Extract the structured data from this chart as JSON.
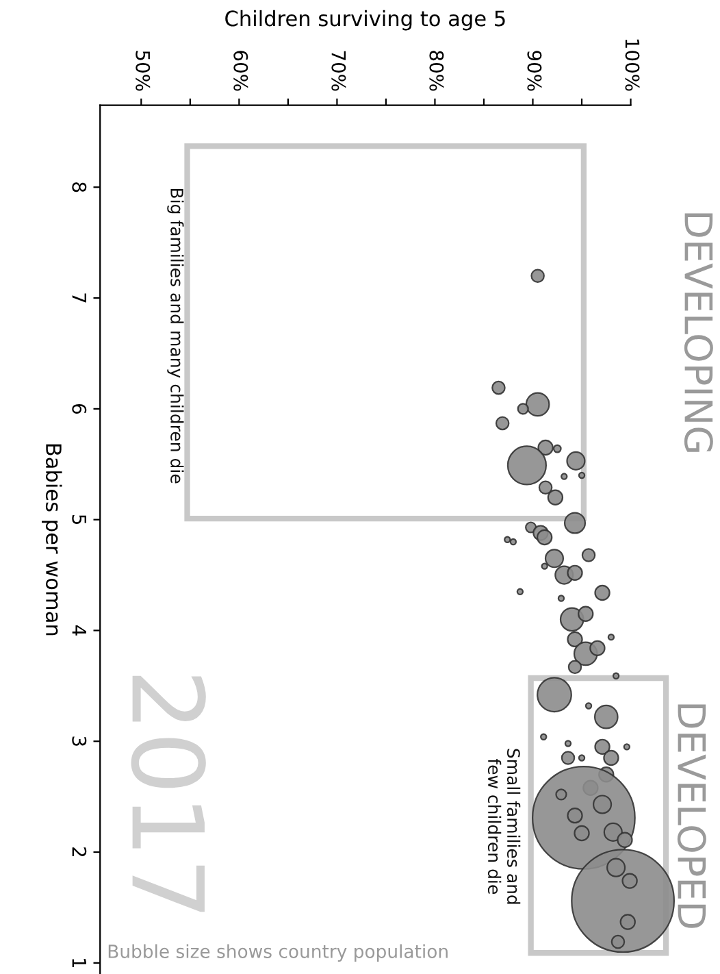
{
  "chart_data": {
    "type": "bubble",
    "xlabel": "Children surviving to age 5",
    "ylabel": "Babies per woman",
    "x": [
      90.5,
      86.5,
      90.5,
      89.0,
      86.9,
      91.3,
      92.5,
      89.4,
      94.4,
      93.2,
      95.0,
      91.3,
      92.3,
      94.3,
      89.8,
      87.4,
      90.8,
      91.2,
      88.0,
      92.2,
      91.2,
      95.7,
      93.2,
      94.3,
      88.7,
      92.9,
      97.1,
      94.0,
      95.4,
      98.0,
      94.3,
      95.4,
      96.6,
      94.3,
      98.5,
      92.2,
      95.7,
      97.5,
      91.1,
      93.6,
      95.0,
      97.1,
      98.0,
      99.6,
      93.6,
      97.5,
      95.9,
      95.2,
      99.2,
      97.1,
      98.2,
      99.4,
      98.5,
      99.9,
      99.7,
      98.7,
      95.0,
      92.9,
      94.3
    ],
    "values": [
      7.2,
      6.19,
      6.04,
      6.0,
      5.87,
      5.65,
      5.64,
      5.49,
      5.53,
      5.39,
      5.4,
      5.29,
      5.2,
      4.97,
      4.93,
      4.82,
      4.88,
      4.84,
      4.8,
      4.65,
      4.58,
      4.68,
      4.5,
      4.52,
      4.35,
      4.29,
      4.34,
      4.1,
      4.15,
      3.94,
      3.92,
      3.79,
      3.84,
      3.67,
      3.59,
      3.42,
      3.32,
      3.22,
      3.04,
      2.98,
      2.85,
      2.95,
      2.85,
      2.95,
      2.85,
      2.7,
      2.58,
      2.31,
      1.56,
      2.43,
      2.18,
      2.11,
      1.86,
      1.74,
      1.37,
      1.19,
      2.17,
      2.52,
      2.33
    ],
    "sizes": [
      0.015,
      0.015,
      0.05,
      0.01,
      0.015,
      0.02,
      0.005,
      0.14,
      0.03,
      0.003,
      0.003,
      0.015,
      0.02,
      0.04,
      0.01,
      0.003,
      0.02,
      0.02,
      0.003,
      0.03,
      0.003,
      0.015,
      0.03,
      0.02,
      0.003,
      0.003,
      0.02,
      0.05,
      0.02,
      0.003,
      0.02,
      0.05,
      0.02,
      0.015,
      0.003,
      0.11,
      0.003,
      0.05,
      0.003,
      0.003,
      0.003,
      0.02,
      0.02,
      0.003,
      0.015,
      0.02,
      0.02,
      1,
      1,
      0.03,
      0.03,
      0.02,
      0.03,
      0.02,
      0.02,
      0.015,
      0.02,
      0.01,
      0.02
    ],
    "color": "#8c8c8c",
    "xlim": [
      45.8,
      100
    ],
    "xticks": [
      {
        "value": 50,
        "label": "50%"
      },
      {
        "value": 55,
        "label": null
      },
      {
        "value": 60,
        "label": "60%"
      },
      {
        "value": 65,
        "label": null
      },
      {
        "value": 70,
        "label": "70%"
      },
      {
        "value": 75,
        "label": null
      },
      {
        "value": 80,
        "label": "80%"
      },
      {
        "value": 85,
        "label": null
      },
      {
        "value": 90,
        "label": "90%"
      },
      {
        "value": 95,
        "label": null
      },
      {
        "value": 100,
        "label": "100%"
      }
    ],
    "ylim": [
      0.9,
      8.74
    ],
    "yticks": [
      1,
      2,
      3,
      4,
      5,
      6,
      7,
      8
    ],
    "grid": false,
    "annotations": [
      "DEVELOPING",
      "DEVELOPED",
      "Big families and many children die",
      "Small families and\nfew children die",
      "2017",
      "Bubble size shows country population"
    ]
  }
}
